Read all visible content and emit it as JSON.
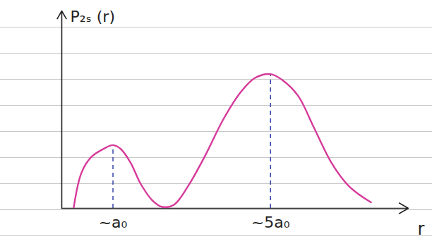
{
  "chart_data": {
    "type": "line",
    "y_label": "P₂ₛ (r)",
    "x_label": "r",
    "x": [
      0,
      0.2,
      0.45,
      0.75,
      1,
      1.2,
      1.45,
      1.7,
      2,
      2.25,
      2.55,
      2.9,
      3.35,
      3.8,
      4.25,
      4.6,
      5,
      5.3,
      5.7,
      6.1,
      6.55,
      7,
      7.55
    ],
    "values": [
      0,
      18,
      26,
      30,
      32,
      30,
      23,
      12.5,
      4,
      0.7,
      1.8,
      11,
      27,
      45,
      59,
      66,
      68,
      65,
      57,
      41,
      23,
      11,
      3
    ],
    "color": "#d63a9a",
    "xlim": [
      -0.3,
      8.5
    ],
    "ylim": [
      0,
      100
    ],
    "xticks": [
      {
        "value": 1,
        "label": "~a₀"
      },
      {
        "value": 5,
        "label": "~5a₀"
      }
    ],
    "yticks": [],
    "tick_labels": "x",
    "grid": false
  }
}
